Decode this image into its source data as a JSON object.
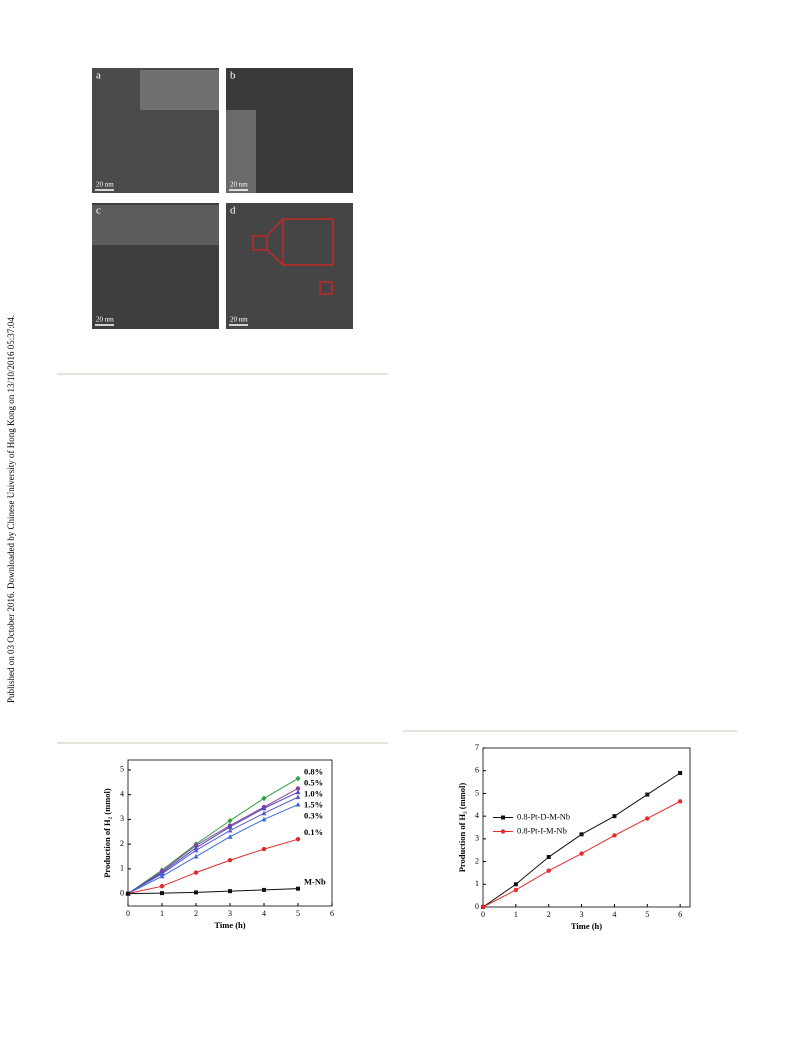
{
  "sidebar": "Published on 03 October 2016. Downloaded by Chinese University of Hong Kong on 13/10/2016 05:37:04.",
  "figure": {
    "panels": [
      {
        "label": "a",
        "scale": "20 nm"
      },
      {
        "label": "b",
        "scale": "20 nm"
      },
      {
        "label": "c",
        "scale": "20 nm"
      },
      {
        "label": "d",
        "scale": "20 nm"
      }
    ]
  },
  "chart_data": [
    {
      "type": "line",
      "x_label": "Time (h)",
      "y_label": "Production of H₂ (mmol)",
      "legend": "inline",
      "x": [
        0,
        1,
        2,
        3,
        4,
        5
      ],
      "xlim": [
        0,
        6
      ],
      "ylim": [
        -0.5,
        5.4
      ],
      "xticks": [
        0,
        1,
        2,
        3,
        4,
        5,
        6
      ],
      "yticks": [
        0,
        1,
        2,
        3,
        4,
        5
      ],
      "series": [
        {
          "name": "0.8%",
          "color": "#2e9e3e",
          "marker": "diamond",
          "values": [
            0,
            0.95,
            2.0,
            2.95,
            3.85,
            4.65
          ]
        },
        {
          "name": "0.5%",
          "color": "#8a3fa0",
          "marker": "circle",
          "values": [
            0,
            0.9,
            1.95,
            2.75,
            3.5,
            4.25
          ]
        },
        {
          "name": "1.0%",
          "color": "#4a4ab8",
          "marker": "triangle",
          "values": [
            0,
            0.85,
            1.85,
            2.7,
            3.45,
            4.1
          ]
        },
        {
          "name": "1.5%",
          "color": "#5b5bd0",
          "marker": "triangle",
          "values": [
            0,
            0.8,
            1.75,
            2.55,
            3.25,
            3.9
          ]
        },
        {
          "name": "0.3%",
          "color": "#3a6ad8",
          "marker": "triangle",
          "values": [
            0,
            0.7,
            1.5,
            2.3,
            3.0,
            3.6
          ]
        },
        {
          "name": "0.1%",
          "color": "#e02a2a",
          "marker": "circle",
          "values": [
            0,
            0.3,
            0.85,
            1.35,
            1.8,
            2.2
          ]
        },
        {
          "name": "M-Nb",
          "color": "#111111",
          "marker": "square",
          "values": [
            0,
            0.02,
            0.05,
            0.1,
            0.15,
            0.2
          ]
        }
      ]
    },
    {
      "type": "line",
      "x_label": "Time (h)",
      "y_label": "Production of H₂ (mmol)",
      "legend": "center left",
      "x": [
        0,
        1,
        2,
        3,
        4,
        5,
        6
      ],
      "xlim": [
        0,
        6.3
      ],
      "ylim": [
        0,
        7
      ],
      "xticks": [
        0,
        1,
        2,
        3,
        4,
        5,
        6
      ],
      "yticks": [
        0,
        1,
        2,
        3,
        4,
        5,
        6,
        7
      ],
      "series": [
        {
          "name": "0.8-Pt-D-M-Nb",
          "color": "#111111",
          "marker": "square",
          "values": [
            0,
            1.0,
            2.2,
            3.2,
            4.0,
            4.95,
            5.9
          ]
        },
        {
          "name": "0.8-Pt-I-M-Nb",
          "color": "#e82a2a",
          "marker": "circle",
          "values": [
            0,
            0.75,
            1.6,
            2.35,
            3.15,
            3.9,
            4.65
          ]
        }
      ]
    }
  ]
}
